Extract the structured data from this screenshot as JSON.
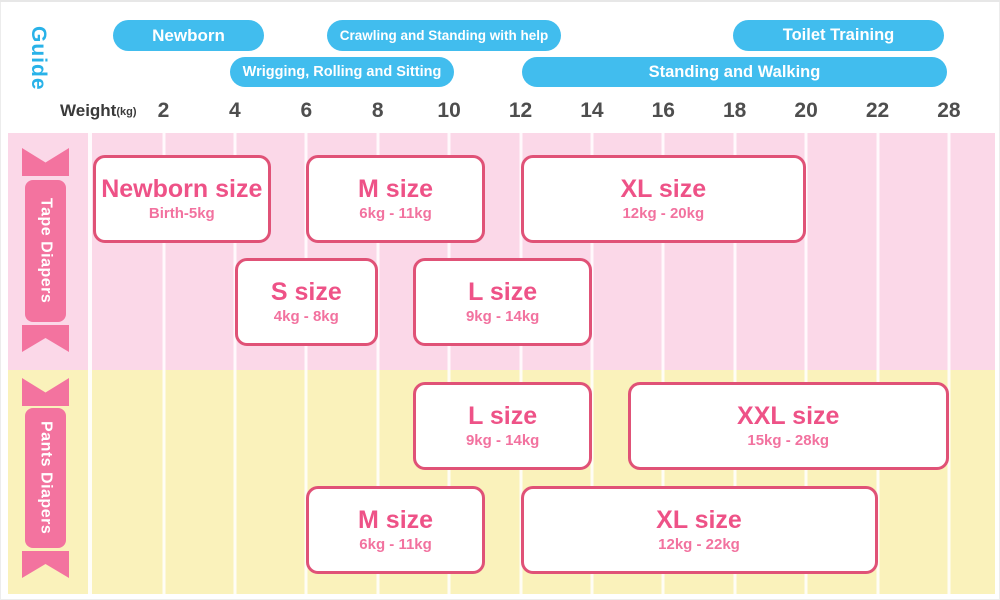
{
  "header": {
    "guide_label": "Guide"
  },
  "axis": {
    "label": "Weight",
    "unit": "(kg)",
    "tick_labels": [
      "2",
      "4",
      "6",
      "8",
      "10",
      "12",
      "14",
      "16",
      "18",
      "20",
      "22",
      "28"
    ]
  },
  "chart_data": {
    "type": "bar",
    "subtype": "horizontal-range-chart",
    "title": "Guide",
    "xlabel": "Weight (kg)",
    "x_ticks": [
      2,
      4,
      6,
      8,
      10,
      12,
      14,
      16,
      18,
      20,
      22,
      28
    ],
    "x_scale": "categorical-evenly-spaced",
    "grid": true,
    "stages": [
      {
        "label": "Newborn",
        "row": 1
      },
      {
        "label": "Crawling and Standing with help",
        "row": 1
      },
      {
        "label": "Toilet Training",
        "row": 1
      },
      {
        "label": "Wrigging, Rolling and Sitting",
        "row": 2
      },
      {
        "label": "Standing and Walking",
        "row": 2
      }
    ],
    "groups": [
      {
        "name": "Tape Diapers",
        "sizes": [
          {
            "size": "Newborn size",
            "range_label": "Birth-5kg",
            "from_kg": null,
            "to_kg": 5,
            "row": 1
          },
          {
            "size": "M size",
            "range_label": "6kg - 11kg",
            "from_kg": 6,
            "to_kg": 11,
            "row": 1
          },
          {
            "size": "XL size",
            "range_label": "12kg - 20kg",
            "from_kg": 12,
            "to_kg": 20,
            "row": 1
          },
          {
            "size": "S size",
            "range_label": "4kg - 8kg",
            "from_kg": 4,
            "to_kg": 8,
            "row": 2
          },
          {
            "size": "L size",
            "range_label": "9kg - 14kg",
            "from_kg": 9,
            "to_kg": 14,
            "row": 2
          }
        ]
      },
      {
        "name": "Pants Diapers",
        "sizes": [
          {
            "size": "L size",
            "range_label": "9kg - 14kg",
            "from_kg": 9,
            "to_kg": 14,
            "row": 1
          },
          {
            "size": "XXL size",
            "range_label": "15kg - 28kg",
            "from_kg": 15,
            "to_kg": 28,
            "row": 1
          },
          {
            "size": "M size",
            "range_label": "6kg - 11kg",
            "from_kg": 6,
            "to_kg": 11,
            "row": 2
          },
          {
            "size": "XL size",
            "range_label": "12kg - 22kg",
            "from_kg": 12,
            "to_kg": 22,
            "row": 2
          }
        ]
      }
    ]
  },
  "colors": {
    "stage_pill_blue": "#41bdee",
    "guide_text_blue": "#29b2e8",
    "tape_band_pink": "#fbd8e8",
    "pants_band_yellow": "#faf2bb",
    "ribbon_pink": "#f3739f",
    "box_border_pink": "#e05277",
    "size_title_pink": "#ee5287",
    "range_text_pink": "#f2729f"
  }
}
